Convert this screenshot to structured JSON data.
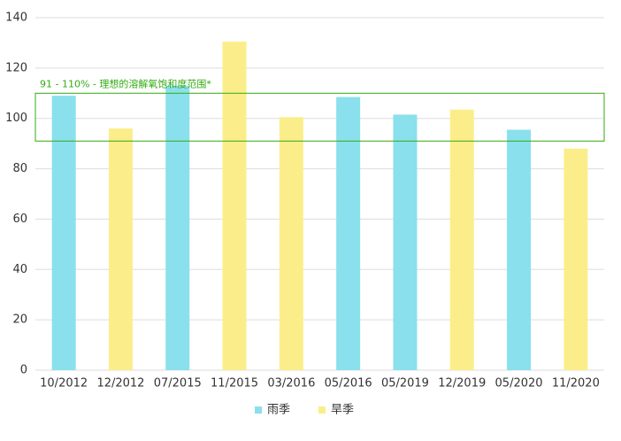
{
  "chart_data": {
    "type": "bar",
    "categories": [
      "10/2012",
      "12/2012",
      "07/2015",
      "11/2015",
      "03/2016",
      "05/2016",
      "05/2019",
      "12/2019",
      "05/2020",
      "11/2020"
    ],
    "series": [
      {
        "name": "雨季",
        "color": "#8ae0ec",
        "values": [
          109,
          null,
          113,
          null,
          null,
          108.5,
          101.5,
          null,
          95.5,
          null
        ]
      },
      {
        "name": "旱季",
        "color": "#fbee8a",
        "values": [
          null,
          96,
          null,
          130.5,
          100.5,
          null,
          null,
          103.5,
          null,
          88
        ]
      }
    ],
    "ylim": [
      0,
      140
    ],
    "yticks": [
      0,
      20,
      40,
      60,
      80,
      100,
      120,
      140
    ],
    "grid": true,
    "annotation": {
      "text": "91 - 110% - 理想的溶解氧饱和度范围*",
      "range": [
        91,
        110
      ],
      "color": "#33aa11"
    },
    "legend": "bottom"
  }
}
